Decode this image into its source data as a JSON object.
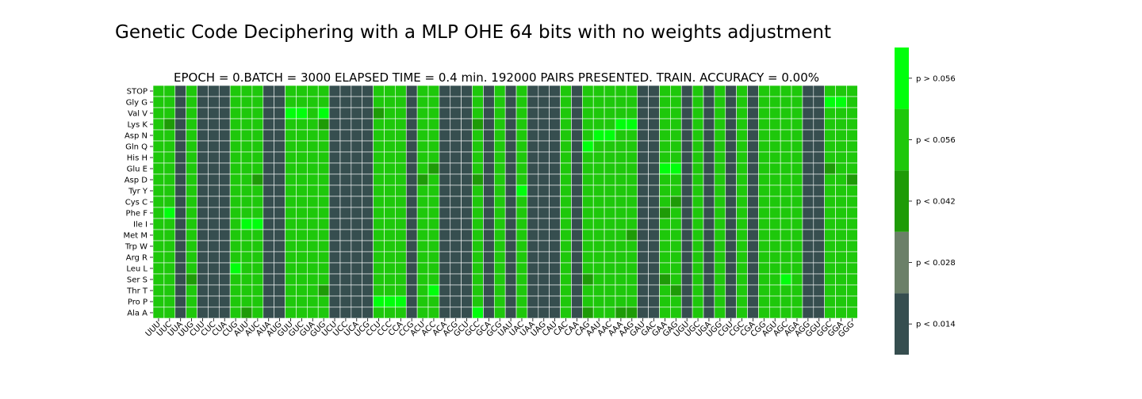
{
  "title": "Genetic Code Deciphering with a MLP OHE 64 bits with no weights adjustment",
  "chart_data": {
    "type": "heatmap",
    "subtitle": "EPOCH =  0.BATCH = 3000 ELAPSED TIME = 0.4 min.   192000 PAIRS PRESENTED.  TRAIN. ACCURACY = 0.00%",
    "rows": [
      "STOP",
      "Gly G",
      "Val V",
      "Lys K",
      "Asp N",
      "Gln Q",
      "His H",
      "Glu E",
      "Asp D",
      "Tyr Y",
      "Cys C",
      "Phe F",
      "Ile I",
      "Met M",
      "Trp W",
      "Arg R",
      "Leu L",
      "Ser S",
      "Thr T",
      "Pro P",
      "Ala A"
    ],
    "columns": [
      "UUU",
      "UUC",
      "UUA",
      "UUG",
      "CUU",
      "CUC",
      "CUA",
      "CUG",
      "AUU",
      "AUC",
      "AUA",
      "AUG",
      "GUU",
      "GUC",
      "GUA",
      "GUG",
      "UCU",
      "UCC",
      "UCA",
      "UCG",
      "CCU",
      "CCC",
      "CCA",
      "CCG",
      "ACU",
      "ACC",
      "ACA",
      "ACG",
      "GCU",
      "GCC",
      "GCA",
      "GCG",
      "UAU",
      "UAC",
      "UAA",
      "UAG",
      "CAU",
      "CAC",
      "CAA",
      "CAG",
      "AAU",
      "AAC",
      "AAA",
      "AAG",
      "GAU",
      "GAC",
      "GAA",
      "GAG",
      "UGU",
      "UGC",
      "UGA",
      "UGG",
      "CGU",
      "CGC",
      "CGA",
      "CGG",
      "AGU",
      "AGC",
      "AGA",
      "AGG",
      "GGU",
      "GGC",
      "GGA",
      "GGG"
    ],
    "column_levels": [
      3,
      3,
      0,
      3,
      0,
      0,
      0,
      3,
      3,
      3,
      0,
      0,
      3,
      3,
      3,
      3,
      0,
      0,
      0,
      0,
      3,
      3,
      3,
      0,
      3,
      3,
      0,
      0,
      0,
      3,
      0,
      3,
      0,
      3,
      0,
      0,
      0,
      3,
      0,
      3,
      3,
      3,
      3,
      3,
      0,
      0,
      3,
      3,
      0,
      3,
      0,
      3,
      0,
      3,
      0,
      3,
      3,
      3,
      3,
      0,
      0,
      3,
      3,
      3
    ],
    "cell_overrides": [
      {
        "row": 1,
        "col": 61,
        "level": 4
      },
      {
        "row": 1,
        "col": 62,
        "level": 4
      },
      {
        "row": 2,
        "col": 12,
        "level": 4
      },
      {
        "row": 2,
        "col": 13,
        "level": 4
      },
      {
        "row": 2,
        "col": 15,
        "level": 4
      },
      {
        "row": 2,
        "col": 20,
        "level": 2
      },
      {
        "row": 3,
        "col": 1,
        "level": 2
      },
      {
        "row": 3,
        "col": 15,
        "level": 2
      },
      {
        "row": 3,
        "col": 29,
        "level": 2
      },
      {
        "row": 3,
        "col": 42,
        "level": 4
      },
      {
        "row": 3,
        "col": 43,
        "level": 4
      },
      {
        "row": 4,
        "col": 40,
        "level": 4
      },
      {
        "row": 4,
        "col": 41,
        "level": 4
      },
      {
        "row": 5,
        "col": 39,
        "level": 4
      },
      {
        "row": 7,
        "col": 25,
        "level": 2
      },
      {
        "row": 7,
        "col": 46,
        "level": 4
      },
      {
        "row": 7,
        "col": 47,
        "level": 4
      },
      {
        "row": 7,
        "col": 61,
        "level": 2
      },
      {
        "row": 8,
        "col": 9,
        "level": 2
      },
      {
        "row": 8,
        "col": 24,
        "level": 2
      },
      {
        "row": 8,
        "col": 29,
        "level": 2
      },
      {
        "row": 8,
        "col": 63,
        "level": 2
      },
      {
        "row": 9,
        "col": 33,
        "level": 4
      },
      {
        "row": 10,
        "col": 47,
        "level": 2
      },
      {
        "row": 11,
        "col": 1,
        "level": 4
      },
      {
        "row": 11,
        "col": 46,
        "level": 2
      },
      {
        "row": 12,
        "col": 8,
        "level": 4
      },
      {
        "row": 12,
        "col": 9,
        "level": 4
      },
      {
        "row": 13,
        "col": 43,
        "level": 2
      },
      {
        "row": 16,
        "col": 7,
        "level": 4
      },
      {
        "row": 17,
        "col": 3,
        "level": 2
      },
      {
        "row": 17,
        "col": 39,
        "level": 2
      },
      {
        "row": 17,
        "col": 46,
        "level": 2
      },
      {
        "row": 17,
        "col": 57,
        "level": 4
      },
      {
        "row": 18,
        "col": 15,
        "level": 2
      },
      {
        "row": 18,
        "col": 25,
        "level": 4
      },
      {
        "row": 18,
        "col": 47,
        "level": 2
      },
      {
        "row": 19,
        "col": 20,
        "level": 4
      },
      {
        "row": 19,
        "col": 21,
        "level": 4
      },
      {
        "row": 19,
        "col": 22,
        "level": 4
      },
      {
        "row": 20,
        "col": 8,
        "level": 2
      },
      {
        "row": 20,
        "col": 29,
        "level": 4
      },
      {
        "row": 20,
        "col": 39,
        "level": 2
      },
      {
        "row": 20,
        "col": 42,
        "level": 2
      },
      {
        "row": 20,
        "col": 43,
        "level": 2
      }
    ],
    "colorbar": {
      "levels": [
        {
          "label": "p < 0.014",
          "color": "#364e4f"
        },
        {
          "label": "p < 0.028",
          "color": "#6b8068"
        },
        {
          "label": "p < 0.042",
          "color": "#1e9b07"
        },
        {
          "label": "p < 0.056",
          "color": "#1ec80b"
        },
        {
          "label": "p > 0.056",
          "color": "#00ff0c"
        }
      ]
    },
    "grid_line_color": "#ffffff"
  }
}
